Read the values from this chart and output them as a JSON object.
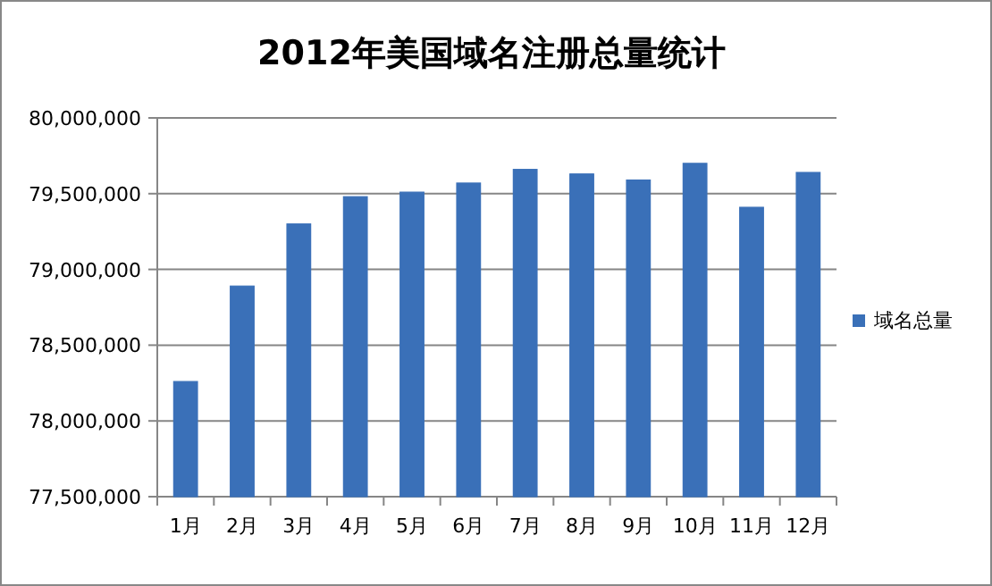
{
  "chart_data": {
    "type": "bar",
    "title": "2012年美国域名注册总量统计",
    "categories": [
      "1月",
      "2月",
      "3月",
      "4月",
      "5月",
      "6月",
      "7月",
      "8月",
      "9月",
      "10月",
      "11月",
      "12月"
    ],
    "series": [
      {
        "name": "域名总量",
        "color": "#3a70b8",
        "values": [
          78260000,
          78890000,
          79300000,
          79480000,
          79510000,
          79570000,
          79660000,
          79630000,
          79590000,
          79700000,
          79410000,
          79640000
        ]
      }
    ],
    "ylim": [
      77500000,
      80000000
    ],
    "yticks": [
      {
        "value": 77500000,
        "label": "77,500,000"
      },
      {
        "value": 78000000,
        "label": "78,000,000"
      },
      {
        "value": 78500000,
        "label": "78,500,000"
      },
      {
        "value": 79000000,
        "label": "79,000,000"
      },
      {
        "value": 79500000,
        "label": "79,500,000"
      },
      {
        "value": 80000000,
        "label": "80,000,000"
      }
    ],
    "grid": "y",
    "legend": "right"
  }
}
